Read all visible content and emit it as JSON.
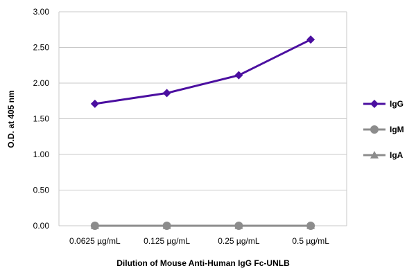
{
  "chart_data": {
    "type": "line",
    "title": "",
    "xlabel": "Dilution of Mouse Anti-Human IgG Fc-UNLB",
    "ylabel": "O.D. at 405 nm",
    "categories": [
      "0.0625 µg/mL",
      "0.125 µg/mL",
      "0.25 µg/mL",
      "0.5 µg/mL"
    ],
    "y_ticks": [
      "0.00",
      "0.50",
      "1.00",
      "1.50",
      "2.00",
      "2.50",
      "3.00"
    ],
    "ylim": [
      0,
      3
    ],
    "grid": true,
    "legend_position": "right",
    "series": [
      {
        "name": "IgG",
        "values": [
          1.71,
          1.86,
          2.11,
          2.61
        ],
        "color": "#4b0fa0",
        "marker": "diamond"
      },
      {
        "name": "IgM",
        "values": [
          0.0,
          0.0,
          0.0,
          0.0
        ],
        "color": "#8c8c8c",
        "marker": "circle"
      },
      {
        "name": "IgA",
        "values": [
          0.0,
          0.0,
          0.0,
          0.0
        ],
        "color": "#8c8c8c",
        "marker": "triangle"
      }
    ]
  }
}
